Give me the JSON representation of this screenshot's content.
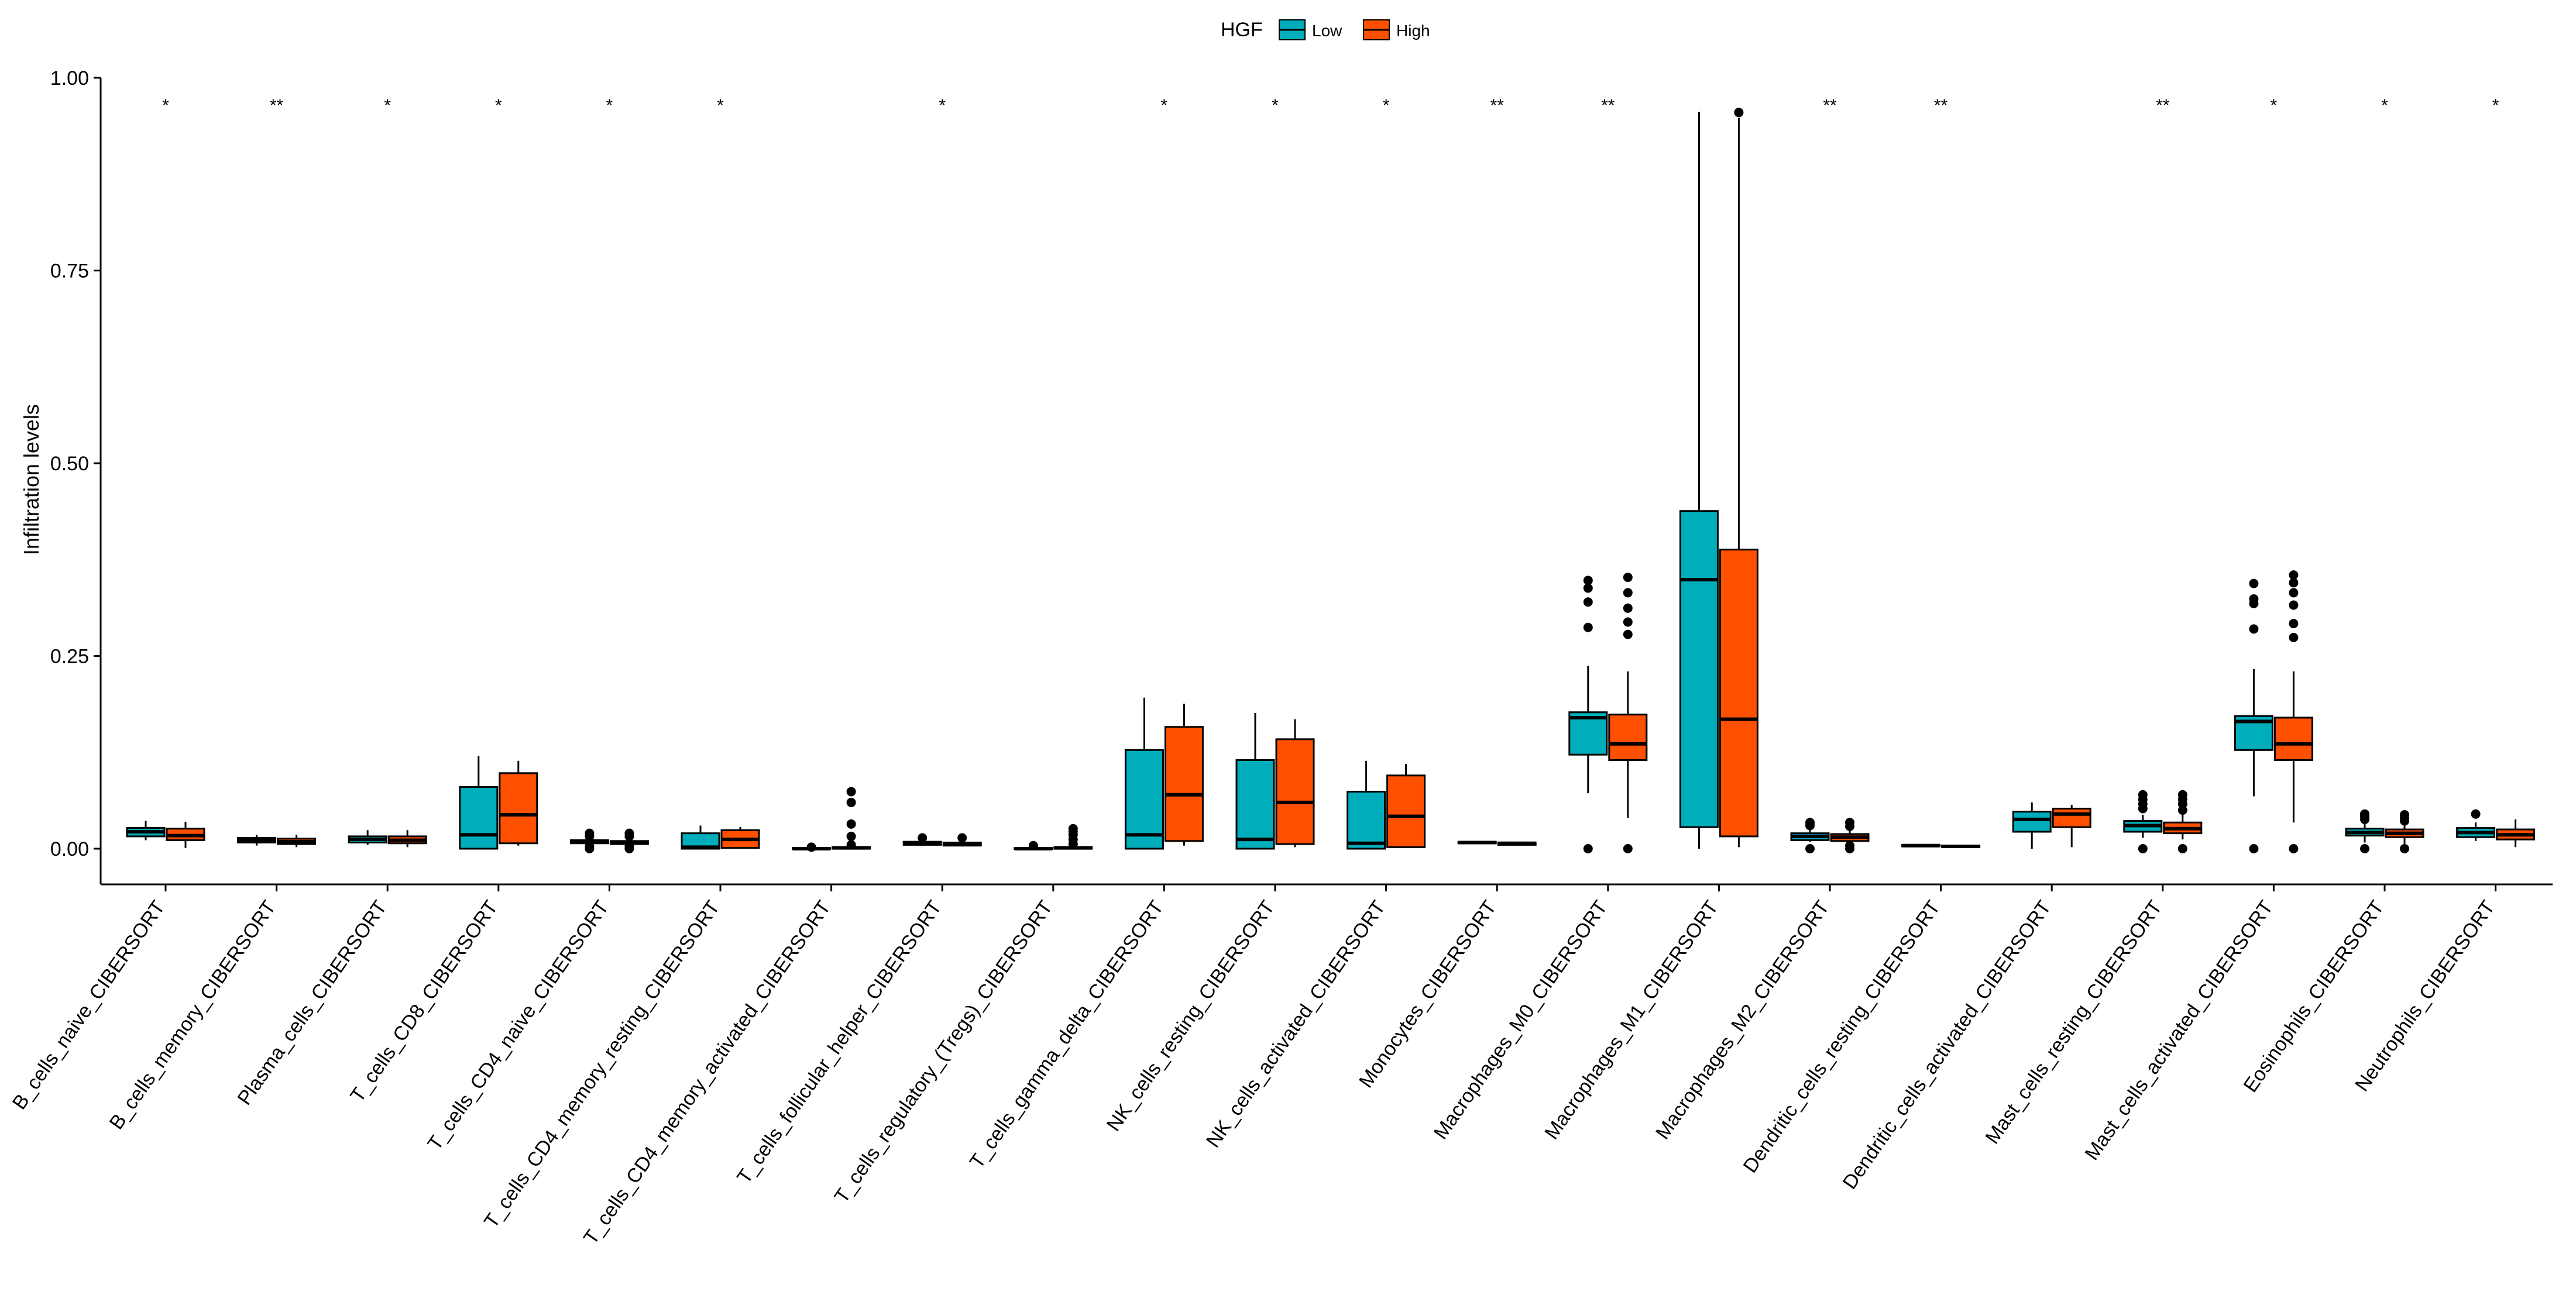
{
  "chart_data": {
    "type": "boxplot",
    "title": "",
    "xlabel": "",
    "ylabel": "Infiltration levels",
    "ylim": [
      0,
      1.0
    ],
    "yticks": [
      "0.00",
      "0.25",
      "0.50",
      "0.75",
      "1.00"
    ],
    "legend": {
      "title": "HGF",
      "position": "top",
      "entries": [
        {
          "name": "Low",
          "color": "#00AEBB"
        },
        {
          "name": "High",
          "color": "#FF4F00"
        }
      ]
    },
    "categories": [
      "B_cells_naive_CIBERSORT",
      "B_cells_memory_CIBERSORT",
      "Plasma_cells_CIBERSORT",
      "T_cells_CD8_CIBERSORT",
      "T_cells_CD4_naive_CIBERSORT",
      "T_cells_CD4_memory_resting_CIBERSORT",
      "T_cells_CD4_memory_activated_CIBERSORT",
      "T_cells_follicular_helper_CIBERSORT",
      "T_cells_regulatory_(Tregs)_CIBERSORT",
      "T_cells_gamma_delta_CIBERSORT",
      "NK_cells_resting_CIBERSORT",
      "NK_cells_activated_CIBERSORT",
      "Monocytes_CIBERSORT",
      "Macrophages_M0_CIBERSORT",
      "Macrophages_M1_CIBERSORT",
      "Macrophages_M2_CIBERSORT",
      "Dendritic_cells_resting_CIBERSORT",
      "Dendritic_cells_activated_CIBERSORT",
      "Mast_cells_resting_CIBERSORT",
      "Mast_cells_activated_CIBERSORT",
      "Eosinophils_CIBERSORT",
      "Neutrophils_CIBERSORT"
    ],
    "significance": [
      "*",
      "**",
      "*",
      "*",
      "*",
      "*",
      "",
      "*",
      "",
      "*",
      "*",
      "*",
      "**",
      "**",
      "",
      "**",
      "**",
      "",
      "**",
      "*",
      "*",
      "*"
    ],
    "series": [
      {
        "name": "Low",
        "color": "#00AEBB",
        "boxes": [
          {
            "min": 0.011,
            "q1": 0.016,
            "median": 0.022,
            "q3": 0.027,
            "max": 0.036,
            "outliers": []
          },
          {
            "min": 0.004,
            "q1": 0.008,
            "median": 0.011,
            "q3": 0.014,
            "max": 0.018,
            "outliers": []
          },
          {
            "min": 0.005,
            "q1": 0.008,
            "median": 0.012,
            "q3": 0.016,
            "max": 0.024,
            "outliers": []
          },
          {
            "min": 0.0,
            "q1": 0.0,
            "median": 0.018,
            "q3": 0.08,
            "max": 0.12,
            "outliers": []
          },
          {
            "min": 0.005,
            "q1": 0.007,
            "median": 0.009,
            "q3": 0.011,
            "max": 0.014,
            "outliers": [
              0.0,
              0.003,
              0.016,
              0.02
            ]
          },
          {
            "min": 0.0,
            "q1": 0.0,
            "median": 0.002,
            "q3": 0.02,
            "max": 0.03,
            "outliers": []
          },
          {
            "min": 0.0,
            "q1": 0.0,
            "median": 0.0,
            "q3": 0.001,
            "max": 0.002,
            "outliers": [
              0.002
            ]
          },
          {
            "min": 0.004,
            "q1": 0.005,
            "median": 0.007,
            "q3": 0.009,
            "max": 0.012,
            "outliers": [
              0.014
            ]
          },
          {
            "min": 0.0,
            "q1": 0.0,
            "median": 0.0,
            "q3": 0.001,
            "max": 0.002,
            "outliers": [
              0.004
            ]
          },
          {
            "min": 0.0,
            "q1": 0.0,
            "median": 0.018,
            "q3": 0.128,
            "max": 0.196,
            "outliers": []
          },
          {
            "min": 0.0,
            "q1": 0.0,
            "median": 0.012,
            "q3": 0.115,
            "max": 0.176,
            "outliers": []
          },
          {
            "min": 0.0,
            "q1": 0.0,
            "median": 0.007,
            "q3": 0.074,
            "max": 0.114,
            "outliers": []
          },
          {
            "min": 0.006,
            "q1": 0.007,
            "median": 0.008,
            "q3": 0.009,
            "max": 0.01,
            "outliers": []
          },
          {
            "min": 0.072,
            "q1": 0.122,
            "median": 0.17,
            "q3": 0.177,
            "max": 0.237,
            "outliers": [
              0.0,
              0.287,
              0.32,
              0.338,
              0.348
            ]
          },
          {
            "min": 0.0,
            "q1": 0.028,
            "median": 0.349,
            "q3": 0.438,
            "max": 0.956,
            "outliers": []
          },
          {
            "min": 0.009,
            "q1": 0.011,
            "median": 0.016,
            "q3": 0.02,
            "max": 0.026,
            "outliers": [
              0.0,
              0.03,
              0.034
            ]
          },
          {
            "min": 0.002,
            "q1": 0.003,
            "median": 0.004,
            "q3": 0.005,
            "max": 0.006,
            "outliers": []
          },
          {
            "min": 0.0,
            "q1": 0.022,
            "median": 0.038,
            "q3": 0.048,
            "max": 0.06,
            "outliers": []
          },
          {
            "min": 0.014,
            "q1": 0.022,
            "median": 0.03,
            "q3": 0.036,
            "max": 0.044,
            "outliers": [
              0.0,
              0.052,
              0.058,
              0.064,
              0.07
            ]
          },
          {
            "min": 0.068,
            "q1": 0.128,
            "median": 0.165,
            "q3": 0.172,
            "max": 0.233,
            "outliers": [
              0.0,
              0.285,
              0.318,
              0.324,
              0.344
            ]
          },
          {
            "min": 0.008,
            "q1": 0.017,
            "median": 0.021,
            "q3": 0.026,
            "max": 0.032,
            "outliers": [
              0.0,
              0.038,
              0.042,
              0.045
            ]
          },
          {
            "min": 0.01,
            "q1": 0.015,
            "median": 0.021,
            "q3": 0.027,
            "max": 0.034,
            "outliers": [
              0.045
            ]
          }
        ]
      },
      {
        "name": "High",
        "color": "#FF4F00",
        "boxes": [
          {
            "min": 0.001,
            "q1": 0.011,
            "median": 0.017,
            "q3": 0.026,
            "max": 0.035,
            "outliers": []
          },
          {
            "min": 0.002,
            "q1": 0.006,
            "median": 0.009,
            "q3": 0.013,
            "max": 0.018,
            "outliers": []
          },
          {
            "min": 0.002,
            "q1": 0.007,
            "median": 0.011,
            "q3": 0.016,
            "max": 0.024,
            "outliers": []
          },
          {
            "min": 0.004,
            "q1": 0.007,
            "median": 0.044,
            "q3": 0.098,
            "max": 0.114,
            "outliers": []
          },
          {
            "min": 0.004,
            "q1": 0.006,
            "median": 0.008,
            "q3": 0.01,
            "max": 0.013,
            "outliers": [
              0.0,
              0.003,
              0.016,
              0.02
            ]
          },
          {
            "min": 0.0,
            "q1": 0.001,
            "median": 0.012,
            "q3": 0.024,
            "max": 0.028,
            "outliers": []
          },
          {
            "min": 0.0,
            "q1": 0.0,
            "median": 0.001,
            "q3": 0.002,
            "max": 0.003,
            "outliers": [
              0.005,
              0.016,
              0.032,
              0.06,
              0.074
            ]
          },
          {
            "min": 0.003,
            "q1": 0.004,
            "median": 0.006,
            "q3": 0.008,
            "max": 0.011,
            "outliers": [
              0.014
            ]
          },
          {
            "min": 0.0,
            "q1": 0.0,
            "median": 0.001,
            "q3": 0.002,
            "max": 0.003,
            "outliers": [
              0.006,
              0.012,
              0.018,
              0.022,
              0.026
            ]
          },
          {
            "min": 0.004,
            "q1": 0.01,
            "median": 0.07,
            "q3": 0.158,
            "max": 0.188,
            "outliers": []
          },
          {
            "min": 0.002,
            "q1": 0.006,
            "median": 0.06,
            "q3": 0.142,
            "max": 0.168,
            "outliers": []
          },
          {
            "min": 0.001,
            "q1": 0.002,
            "median": 0.042,
            "q3": 0.095,
            "max": 0.11,
            "outliers": []
          },
          {
            "min": 0.004,
            "q1": 0.005,
            "median": 0.007,
            "q3": 0.008,
            "max": 0.009,
            "outliers": []
          },
          {
            "min": 0.04,
            "q1": 0.115,
            "median": 0.136,
            "q3": 0.174,
            "max": 0.23,
            "outliers": [
              0.0,
              0.278,
              0.294,
              0.312,
              0.332,
              0.352
            ]
          },
          {
            "min": 0.002,
            "q1": 0.016,
            "median": 0.168,
            "q3": 0.388,
            "max": 0.948,
            "outliers": [
              0.955
            ]
          },
          {
            "min": 0.008,
            "q1": 0.01,
            "median": 0.015,
            "q3": 0.019,
            "max": 0.025,
            "outliers": [
              0.0,
              0.004,
              0.029,
              0.034
            ]
          },
          {
            "min": 0.002,
            "q1": 0.002,
            "median": 0.003,
            "q3": 0.004,
            "max": 0.005,
            "outliers": []
          },
          {
            "min": 0.002,
            "q1": 0.028,
            "median": 0.045,
            "q3": 0.052,
            "max": 0.057,
            "outliers": []
          },
          {
            "min": 0.012,
            "q1": 0.02,
            "median": 0.026,
            "q3": 0.034,
            "max": 0.044,
            "outliers": [
              0.0,
              0.05,
              0.058,
              0.064,
              0.07
            ]
          },
          {
            "min": 0.034,
            "q1": 0.115,
            "median": 0.136,
            "q3": 0.17,
            "max": 0.23,
            "outliers": [
              0.0,
              0.274,
              0.292,
              0.316,
              0.332,
              0.345,
              0.355
            ]
          },
          {
            "min": 0.006,
            "q1": 0.015,
            "median": 0.02,
            "q3": 0.025,
            "max": 0.032,
            "outliers": [
              0.0,
              0.036,
              0.04,
              0.044
            ]
          },
          {
            "min": 0.002,
            "q1": 0.012,
            "median": 0.018,
            "q3": 0.025,
            "max": 0.038,
            "outliers": []
          }
        ]
      }
    ]
  }
}
